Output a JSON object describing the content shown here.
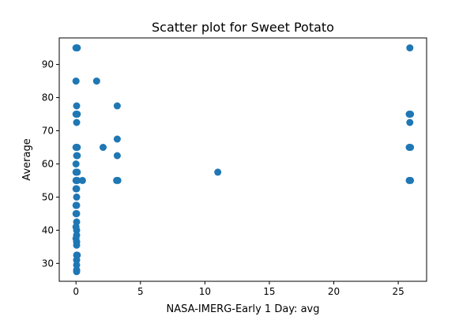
{
  "chart_data": {
    "type": "scatter",
    "title": "Scatter plot for Sweet Potato",
    "xlabel": "NASA-IMERG-Early 1 Day: avg",
    "ylabel": "Average",
    "xlim": [
      -1.3,
      27.2
    ],
    "ylim": [
      24.6,
      98.0
    ],
    "xticks": [
      0,
      5,
      10,
      15,
      20,
      25
    ],
    "yticks": [
      30,
      40,
      50,
      60,
      70,
      80,
      90
    ],
    "grid": false,
    "marker_color": "#1f77b4",
    "series": [
      {
        "points": [
          {
            "x": 0.0,
            "y": 95.0
          },
          {
            "x": 0.05,
            "y": 95.0
          },
          {
            "x": 0.1,
            "y": 95.0
          },
          {
            "x": 0.0,
            "y": 85.0
          },
          {
            "x": 0.05,
            "y": 77.5
          },
          {
            "x": 0.0,
            "y": 75.0
          },
          {
            "x": 0.1,
            "y": 75.0
          },
          {
            "x": 0.05,
            "y": 72.5
          },
          {
            "x": 0.0,
            "y": 65.0
          },
          {
            "x": 0.05,
            "y": 65.0
          },
          {
            "x": 0.1,
            "y": 65.0
          },
          {
            "x": 0.05,
            "y": 62.5
          },
          {
            "x": 0.1,
            "y": 62.5
          },
          {
            "x": 0.0,
            "y": 60.0
          },
          {
            "x": 0.0,
            "y": 57.5
          },
          {
            "x": 0.1,
            "y": 57.5
          },
          {
            "x": 0.0,
            "y": 55.0
          },
          {
            "x": 0.05,
            "y": 55.0
          },
          {
            "x": 0.1,
            "y": 55.0
          },
          {
            "x": 0.0,
            "y": 52.5
          },
          {
            "x": 0.05,
            "y": 52.5
          },
          {
            "x": 0.05,
            "y": 50.0
          },
          {
            "x": 0.0,
            "y": 47.5
          },
          {
            "x": 0.05,
            "y": 47.5
          },
          {
            "x": 0.0,
            "y": 45.0
          },
          {
            "x": 0.05,
            "y": 45.0
          },
          {
            "x": 0.05,
            "y": 42.5
          },
          {
            "x": 0.0,
            "y": 41.0
          },
          {
            "x": 0.05,
            "y": 40.0
          },
          {
            "x": 0.05,
            "y": 38.5
          },
          {
            "x": 0.0,
            "y": 37.5
          },
          {
            "x": 0.05,
            "y": 36.5
          },
          {
            "x": 0.05,
            "y": 35.5
          },
          {
            "x": 0.05,
            "y": 32.5
          },
          {
            "x": 0.1,
            "y": 32.5
          },
          {
            "x": 0.05,
            "y": 31.0
          },
          {
            "x": 0.05,
            "y": 29.5
          },
          {
            "x": 0.05,
            "y": 28.0
          },
          {
            "x": 0.05,
            "y": 27.5
          },
          {
            "x": 0.5,
            "y": 55.0
          },
          {
            "x": 1.6,
            "y": 85.0
          },
          {
            "x": 2.1,
            "y": 65.0
          },
          {
            "x": 3.2,
            "y": 77.5
          },
          {
            "x": 3.2,
            "y": 67.5
          },
          {
            "x": 3.2,
            "y": 62.5
          },
          {
            "x": 3.15,
            "y": 55.0
          },
          {
            "x": 3.25,
            "y": 55.0
          },
          {
            "x": 11.0,
            "y": 57.5
          },
          {
            "x": 25.9,
            "y": 95.0
          },
          {
            "x": 25.85,
            "y": 75.0
          },
          {
            "x": 25.95,
            "y": 75.0
          },
          {
            "x": 25.9,
            "y": 72.5
          },
          {
            "x": 25.85,
            "y": 65.0
          },
          {
            "x": 25.95,
            "y": 65.0
          },
          {
            "x": 25.85,
            "y": 55.0
          },
          {
            "x": 25.95,
            "y": 55.0
          }
        ]
      }
    ]
  }
}
